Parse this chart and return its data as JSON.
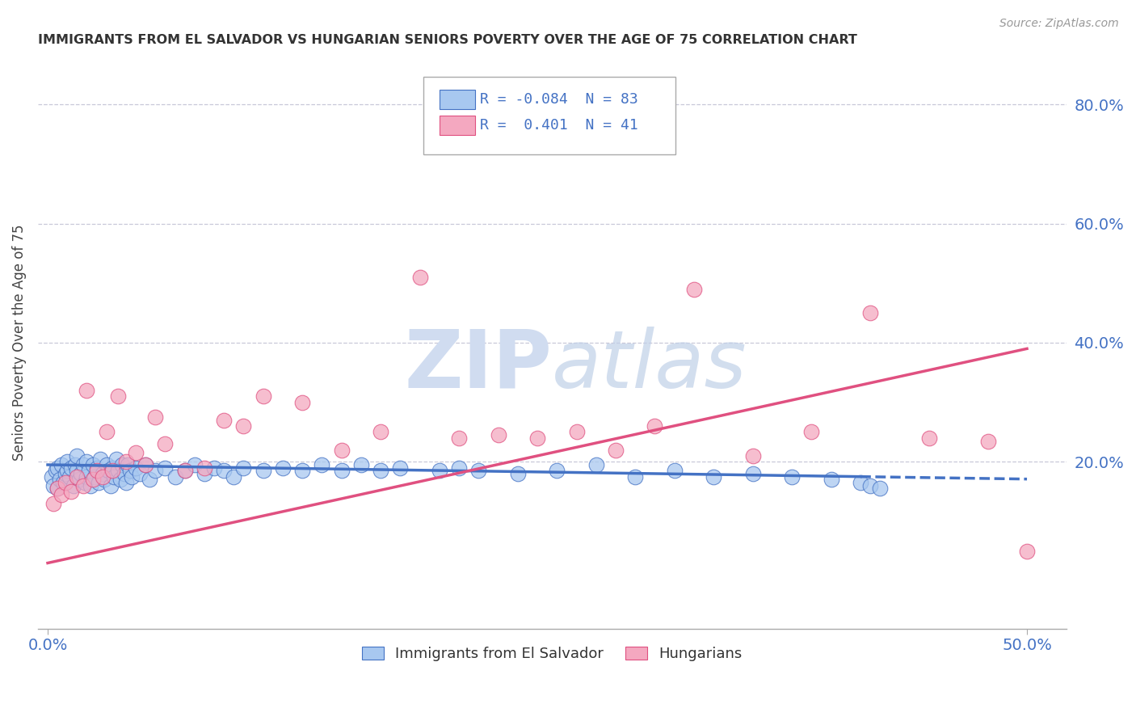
{
  "title": "IMMIGRANTS FROM EL SALVADOR VS HUNGARIAN SENIORS POVERTY OVER THE AGE OF 75 CORRELATION CHART",
  "source": "Source: ZipAtlas.com",
  "legend_label1": "Immigrants from El Salvador",
  "legend_label2": "Hungarians",
  "R1": "-0.084",
  "N1": "83",
  "R2": "0.401",
  "N2": "41",
  "color_blue": "#A8C8F0",
  "color_pink": "#F4A8C0",
  "color_blue_line": "#4472C4",
  "color_pink_line": "#E05080",
  "watermark_color": "#D0DCF0",
  "background_color": "#FFFFFF",
  "grid_color": "#C8C8D8",
  "xlim": [
    0.0,
    0.5
  ],
  "ylim": [
    -0.08,
    0.88
  ],
  "blue_x": [
    0.002,
    0.003,
    0.004,
    0.005,
    0.005,
    0.006,
    0.007,
    0.008,
    0.009,
    0.01,
    0.01,
    0.011,
    0.012,
    0.013,
    0.014,
    0.015,
    0.015,
    0.016,
    0.017,
    0.018,
    0.019,
    0.02,
    0.02,
    0.021,
    0.022,
    0.023,
    0.024,
    0.025,
    0.026,
    0.027,
    0.028,
    0.029,
    0.03,
    0.031,
    0.032,
    0.033,
    0.034,
    0.035,
    0.036,
    0.037,
    0.038,
    0.039,
    0.04,
    0.041,
    0.042,
    0.043,
    0.045,
    0.047,
    0.05,
    0.052,
    0.055,
    0.06,
    0.065,
    0.07,
    0.075,
    0.08,
    0.085,
    0.09,
    0.095,
    0.1,
    0.11,
    0.12,
    0.13,
    0.14,
    0.15,
    0.16,
    0.17,
    0.18,
    0.2,
    0.21,
    0.22,
    0.24,
    0.26,
    0.28,
    0.3,
    0.32,
    0.34,
    0.36,
    0.38,
    0.4,
    0.415,
    0.42,
    0.425
  ],
  "blue_y": [
    0.175,
    0.16,
    0.185,
    0.155,
    0.19,
    0.17,
    0.195,
    0.165,
    0.18,
    0.185,
    0.2,
    0.175,
    0.19,
    0.16,
    0.195,
    0.185,
    0.21,
    0.17,
    0.18,
    0.195,
    0.165,
    0.175,
    0.2,
    0.185,
    0.16,
    0.195,
    0.175,
    0.19,
    0.165,
    0.205,
    0.18,
    0.17,
    0.195,
    0.185,
    0.16,
    0.19,
    0.175,
    0.205,
    0.185,
    0.17,
    0.195,
    0.18,
    0.165,
    0.195,
    0.185,
    0.175,
    0.19,
    0.18,
    0.195,
    0.17,
    0.185,
    0.19,
    0.175,
    0.185,
    0.195,
    0.18,
    0.19,
    0.185,
    0.175,
    0.19,
    0.185,
    0.19,
    0.185,
    0.195,
    0.185,
    0.195,
    0.185,
    0.19,
    0.185,
    0.19,
    0.185,
    0.18,
    0.185,
    0.195,
    0.175,
    0.185,
    0.175,
    0.18,
    0.175,
    0.17,
    0.165,
    0.16,
    0.155
  ],
  "pink_x": [
    0.003,
    0.005,
    0.007,
    0.009,
    0.012,
    0.015,
    0.018,
    0.02,
    0.023,
    0.025,
    0.028,
    0.03,
    0.033,
    0.036,
    0.04,
    0.045,
    0.05,
    0.055,
    0.06,
    0.07,
    0.08,
    0.09,
    0.1,
    0.11,
    0.13,
    0.15,
    0.17,
    0.19,
    0.21,
    0.23,
    0.25,
    0.27,
    0.29,
    0.31,
    0.33,
    0.36,
    0.39,
    0.42,
    0.45,
    0.48,
    0.5
  ],
  "pink_y": [
    0.13,
    0.155,
    0.145,
    0.165,
    0.15,
    0.175,
    0.16,
    0.32,
    0.17,
    0.185,
    0.175,
    0.25,
    0.185,
    0.31,
    0.2,
    0.215,
    0.195,
    0.275,
    0.23,
    0.185,
    0.19,
    0.27,
    0.26,
    0.31,
    0.3,
    0.22,
    0.25,
    0.51,
    0.24,
    0.245,
    0.24,
    0.25,
    0.22,
    0.26,
    0.49,
    0.21,
    0.25,
    0.45,
    0.24,
    0.235,
    0.05
  ]
}
